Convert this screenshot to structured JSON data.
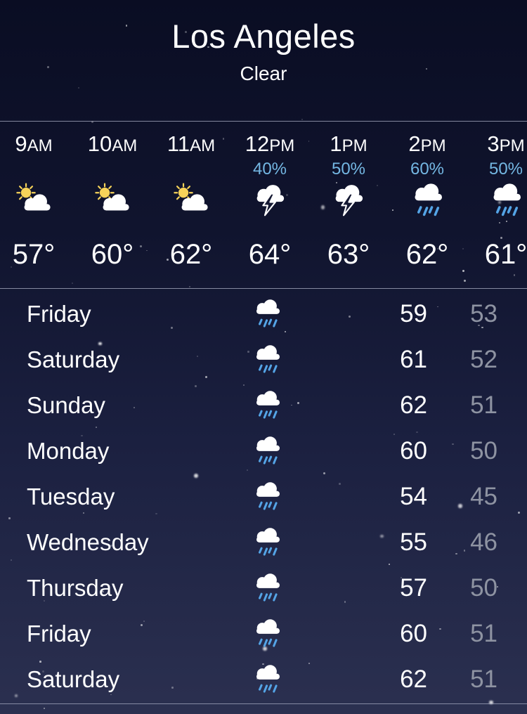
{
  "location": {
    "name": "Los Angeles",
    "condition": "Clear"
  },
  "hourly": {
    "columns": [
      {
        "hour": "9",
        "meridiem": "AM",
        "precip": "",
        "icon": "partly-sunny",
        "temp": "57°"
      },
      {
        "hour": "10",
        "meridiem": "AM",
        "precip": "",
        "icon": "partly-sunny",
        "temp": "60°"
      },
      {
        "hour": "11",
        "meridiem": "AM",
        "precip": "",
        "icon": "partly-sunny",
        "temp": "62°"
      },
      {
        "hour": "12",
        "meridiem": "PM",
        "precip": "40%",
        "icon": "thunderstorm",
        "temp": "64°"
      },
      {
        "hour": "1",
        "meridiem": "PM",
        "precip": "50%",
        "icon": "thunderstorm",
        "temp": "63°"
      },
      {
        "hour": "2",
        "meridiem": "PM",
        "precip": "60%",
        "icon": "rain",
        "temp": "62°"
      },
      {
        "hour": "3",
        "meridiem": "PM",
        "precip": "50%",
        "icon": "rain",
        "temp": "61°"
      }
    ]
  },
  "daily": {
    "rows": [
      {
        "day": "Friday",
        "icon": "rain",
        "high": "59",
        "low": "53"
      },
      {
        "day": "Saturday",
        "icon": "rain",
        "high": "61",
        "low": "52"
      },
      {
        "day": "Sunday",
        "icon": "rain",
        "high": "62",
        "low": "51"
      },
      {
        "day": "Monday",
        "icon": "rain",
        "high": "60",
        "low": "50"
      },
      {
        "day": "Tuesday",
        "icon": "rain",
        "high": "54",
        "low": "45"
      },
      {
        "day": "Wednesday",
        "icon": "rain",
        "high": "55",
        "low": "46"
      },
      {
        "day": "Thursday",
        "icon": "rain",
        "high": "57",
        "low": "50"
      },
      {
        "day": "Friday",
        "icon": "rain",
        "high": "60",
        "low": "51"
      },
      {
        "day": "Saturday",
        "icon": "rain",
        "high": "62",
        "low": "51"
      }
    ]
  },
  "colors": {
    "background_top": "#0a0d23",
    "background_bottom": "#2b3050",
    "precip_percent_blue": "#74b7e3",
    "rain_dash_blue": "#54a4e6",
    "sun_yellow": "#f7d359",
    "low_temp_gray": "#8e93a2"
  }
}
